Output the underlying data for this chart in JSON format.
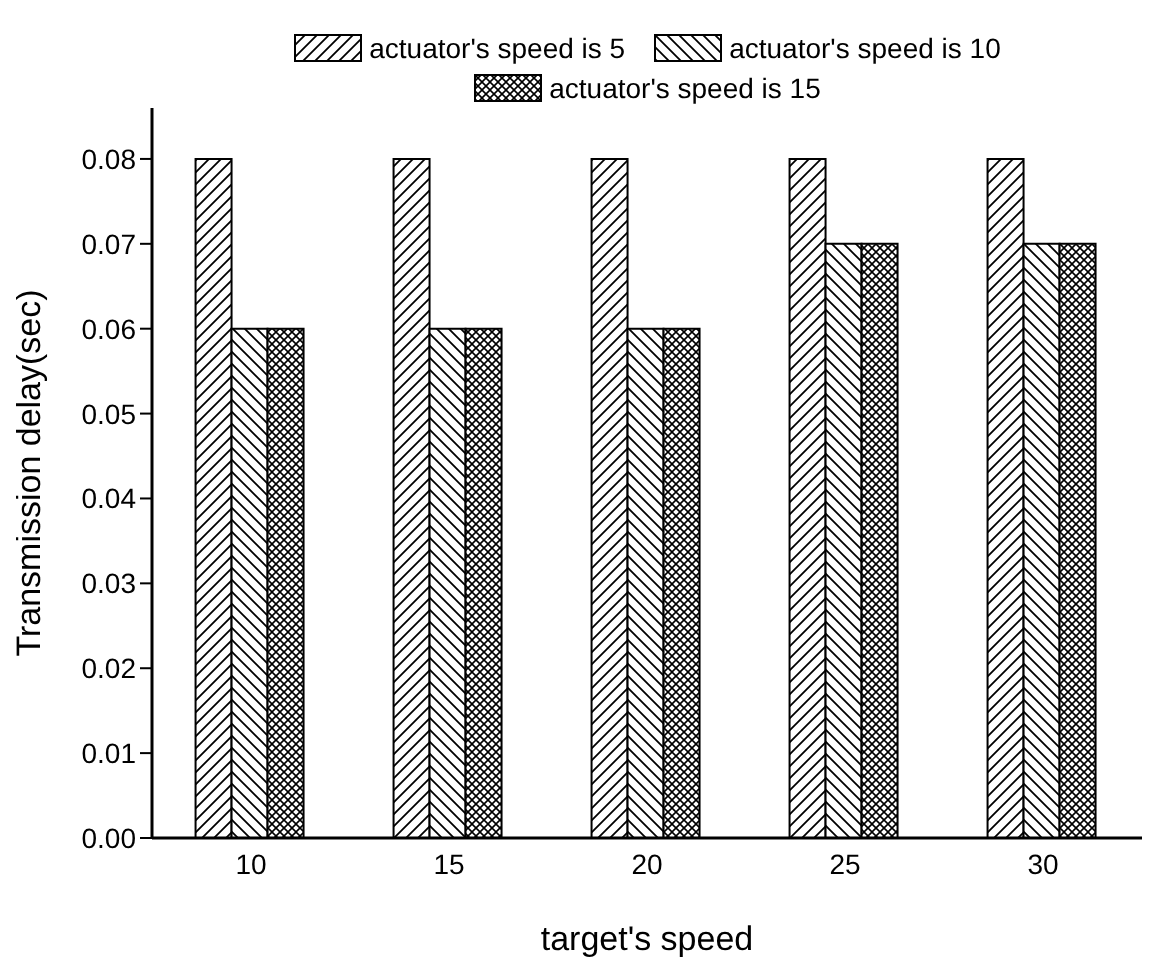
{
  "chart_data": {
    "type": "bar",
    "xlabel": "target's speed",
    "ylabel": "Transmission delay(sec)",
    "categories": [
      "10",
      "15",
      "20",
      "25",
      "30"
    ],
    "series": [
      {
        "name": "actuator's speed is 5",
        "color": "#000000",
        "values": [
          0.08,
          0.08,
          0.08,
          0.08,
          0.08
        ]
      },
      {
        "name": "actuator's speed is 10",
        "color": "#000000",
        "values": [
          0.06,
          0.06,
          0.06,
          0.07,
          0.07
        ]
      },
      {
        "name": "actuator's speed is 15",
        "color": "#000000",
        "values": [
          0.06,
          0.06,
          0.06,
          0.07,
          0.07
        ]
      }
    ],
    "ylim": [
      0,
      0.086
    ],
    "yticks": [
      {
        "value": 0,
        "label": "0.00"
      },
      0.01,
      0.02,
      0.03,
      0.04,
      0.05,
      0.06,
      0.07,
      0.08
    ],
    "grid": false,
    "legend": "top"
  }
}
